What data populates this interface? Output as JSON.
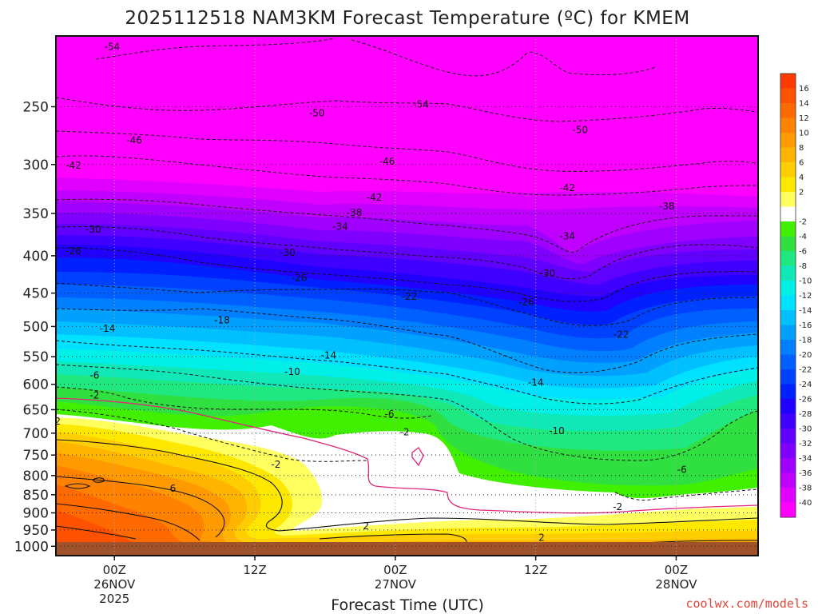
{
  "chart_data": {
    "type": "heatmap",
    "title": "2025112518 NAM3KM Forecast Temperature (ºC) for KMEM",
    "xlabel": "Forecast Time (UTC)",
    "credit": "coolwx.com/models",
    "y_axis": {
      "scale": "pressure (log), inverted",
      "ticks": [
        250,
        300,
        350,
        400,
        450,
        500,
        550,
        600,
        650,
        700,
        750,
        800,
        850,
        900,
        950,
        1000
      ]
    },
    "x_axis": {
      "ticks": [
        {
          "hour": 6,
          "lines": [
            "00Z",
            "26NOV",
            "2025"
          ]
        },
        {
          "hour": 18,
          "lines": [
            "12Z"
          ]
        },
        {
          "hour": 30,
          "lines": [
            "00Z",
            "27NOV"
          ]
        },
        {
          "hour": 42,
          "lines": [
            "12Z"
          ]
        },
        {
          "hour": 54,
          "lines": [
            "00Z",
            "28NOV"
          ]
        }
      ]
    },
    "colorbar": {
      "ticks": [
        16,
        14,
        12,
        10,
        8,
        6,
        4,
        2,
        -2,
        -4,
        -6,
        -8,
        -10,
        -12,
        -14,
        -16,
        -18,
        -20,
        -22,
        -24,
        -26,
        -28,
        -30,
        -32,
        -34,
        -36,
        -38,
        -40
      ],
      "colors": [
        "#ff3a00",
        "#ff5200",
        "#ff6a00",
        "#ff8200",
        "#ff9a00",
        "#ffb400",
        "#ffce00",
        "#ffe800",
        "#ffff60",
        "#ffffff",
        "#40f000",
        "#30e040",
        "#20e880",
        "#10e8b8",
        "#00f0e8",
        "#00e0ff",
        "#00c0ff",
        "#00a0ff",
        "#0080ff",
        "#0060ff",
        "#0040ff",
        "#0020ff",
        "#2000ff",
        "#4000ff",
        "#6000ff",
        "#8000ff",
        "#a000ff",
        "#c000ff",
        "#e000ff",
        "#ff00ff"
      ]
    },
    "contour_labels": [
      {
        "v": "-54",
        "t": 5.8,
        "p": 207
      },
      {
        "v": "-54",
        "t": 32.2,
        "p": 248
      },
      {
        "v": "-50",
        "t": 23.3,
        "p": 255
      },
      {
        "v": "-50",
        "t": 45.8,
        "p": 269
      },
      {
        "v": "-46",
        "t": 7.7,
        "p": 278
      },
      {
        "v": "-46",
        "t": 29.3,
        "p": 297
      },
      {
        "v": "-42",
        "t": 2.5,
        "p": 301
      },
      {
        "v": "-42",
        "t": 44.7,
        "p": 323
      },
      {
        "v": "-42",
        "t": 28.2,
        "p": 333
      },
      {
        "v": "-38",
        "t": 26.5,
        "p": 349
      },
      {
        "v": "-38",
        "t": 53.2,
        "p": 342
      },
      {
        "v": "-34",
        "t": 25.3,
        "p": 365
      },
      {
        "v": "-34",
        "t": 44.7,
        "p": 376
      },
      {
        "v": "-30",
        "t": 4.2,
        "p": 368
      },
      {
        "v": "-30",
        "t": 20.8,
        "p": 396
      },
      {
        "v": "-30",
        "t": 43.0,
        "p": 423
      },
      {
        "v": "-26",
        "t": 2.5,
        "p": 394
      },
      {
        "v": "-26",
        "t": 21.8,
        "p": 429
      },
      {
        "v": "-26",
        "t": 41.2,
        "p": 463
      },
      {
        "v": "-22",
        "t": 31.2,
        "p": 455
      },
      {
        "v": "-22",
        "t": 49.3,
        "p": 513
      },
      {
        "v": "-18",
        "t": 15.2,
        "p": 490
      },
      {
        "v": "-14",
        "t": 5.4,
        "p": 503
      },
      {
        "v": "-14",
        "t": 24.3,
        "p": 548
      },
      {
        "v": "-14",
        "t": 42.0,
        "p": 597
      },
      {
        "v": "-10",
        "t": 21.2,
        "p": 577
      },
      {
        "v": "-10",
        "t": 43.8,
        "p": 695
      },
      {
        "v": "-6",
        "t": 4.3,
        "p": 583
      },
      {
        "v": "-6",
        "t": 29.5,
        "p": 659
      },
      {
        "v": "-6",
        "t": 54.5,
        "p": 785
      },
      {
        "v": "-2",
        "t": 4.3,
        "p": 621
      },
      {
        "v": "-2",
        "t": 1.0,
        "p": 674
      },
      {
        "v": "-2",
        "t": 30.8,
        "p": 698
      },
      {
        "v": "-2",
        "t": 19.8,
        "p": 773
      },
      {
        "v": "-2",
        "t": 49.0,
        "p": 883
      },
      {
        "v": "6",
        "t": 11.0,
        "p": 833
      },
      {
        "v": "2",
        "t": 27.5,
        "p": 938
      },
      {
        "v": "2",
        "t": 42.5,
        "p": 973
      }
    ]
  }
}
